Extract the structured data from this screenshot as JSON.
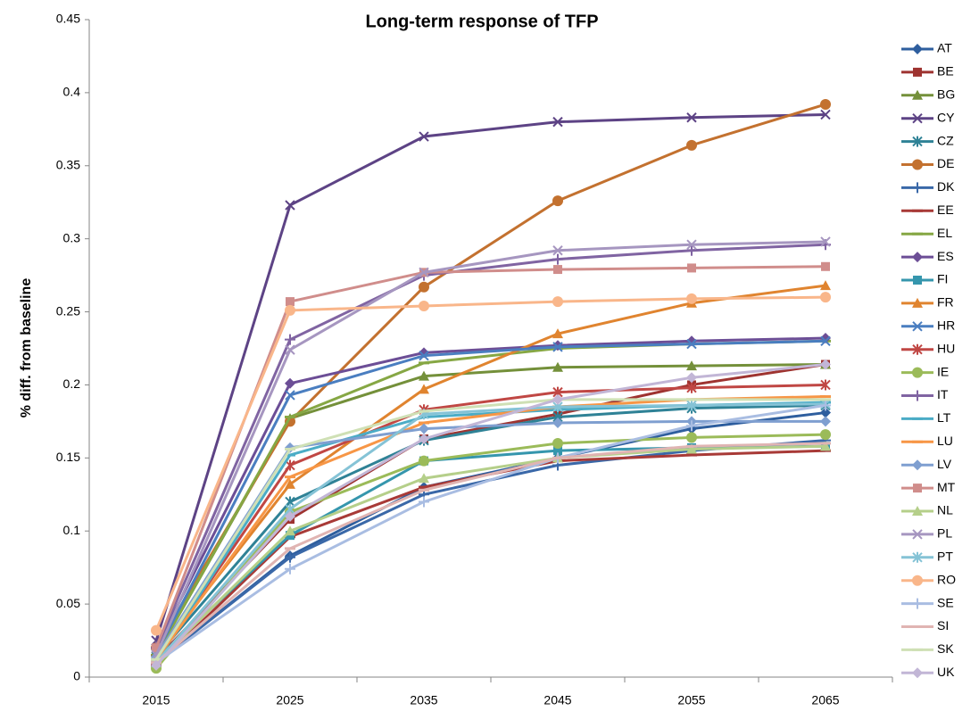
{
  "chart_data": {
    "type": "line",
    "title": "Long-term response of TFP",
    "y_label": "% diff. from baseline",
    "categories": [
      "2015",
      "2025",
      "2035",
      "2045",
      "2055",
      "2065"
    ],
    "ylim": [
      0,
      0.45
    ],
    "yticks": [
      0,
      0.05,
      0.1,
      0.15,
      0.2,
      0.25,
      0.3,
      0.35,
      0.4,
      0.45
    ],
    "grid": false,
    "legend": "right",
    "series": [
      {
        "name": "AT",
        "color": "#2e5e9e",
        "marker": "diamond",
        "values": [
          0.01,
          0.083,
          0.13,
          0.15,
          0.17,
          0.181
        ]
      },
      {
        "name": "BE",
        "color": "#9e3330",
        "marker": "square",
        "values": [
          0.012,
          0.108,
          0.163,
          0.18,
          0.2,
          0.214
        ]
      },
      {
        "name": "BG",
        "color": "#74903a",
        "marker": "triangle",
        "values": [
          0.015,
          0.177,
          0.206,
          0.212,
          0.213,
          0.214
        ]
      },
      {
        "name": "CY",
        "color": "#5d4385",
        "marker": "x",
        "values": [
          0.025,
          0.323,
          0.37,
          0.38,
          0.383,
          0.385
        ]
      },
      {
        "name": "CZ",
        "color": "#2f8296",
        "marker": "star",
        "values": [
          0.014,
          0.12,
          0.162,
          0.178,
          0.184,
          0.186
        ]
      },
      {
        "name": "DE",
        "color": "#c3712f",
        "marker": "circle",
        "values": [
          0.02,
          0.175,
          0.267,
          0.326,
          0.364,
          0.392
        ]
      },
      {
        "name": "DK",
        "color": "#3a68a8",
        "marker": "plus",
        "values": [
          0.01,
          0.082,
          0.125,
          0.145,
          0.155,
          0.162
        ]
      },
      {
        "name": "EE",
        "color": "#a83a37",
        "marker": "dash",
        "values": [
          0.008,
          0.096,
          0.13,
          0.148,
          0.152,
          0.155
        ]
      },
      {
        "name": "EL",
        "color": "#86a744",
        "marker": "dash",
        "values": [
          0.015,
          0.178,
          0.215,
          0.225,
          0.228,
          0.23
        ]
      },
      {
        "name": "ES",
        "color": "#6c4e96",
        "marker": "diamond",
        "values": [
          0.02,
          0.201,
          0.222,
          0.227,
          0.23,
          0.232
        ]
      },
      {
        "name": "FI",
        "color": "#3596ad",
        "marker": "square",
        "values": [
          0.012,
          0.097,
          0.148,
          0.155,
          0.157,
          0.158
        ]
      },
      {
        "name": "FR",
        "color": "#e0842f",
        "marker": "triangle",
        "values": [
          0.015,
          0.132,
          0.197,
          0.235,
          0.256,
          0.268
        ]
      },
      {
        "name": "HR",
        "color": "#4a7ec0",
        "marker": "x",
        "values": [
          0.016,
          0.193,
          0.22,
          0.226,
          0.228,
          0.23
        ]
      },
      {
        "name": "HU",
        "color": "#c04744",
        "marker": "star",
        "values": [
          0.012,
          0.145,
          0.183,
          0.195,
          0.198,
          0.2
        ]
      },
      {
        "name": "IE",
        "color": "#9bbb59",
        "marker": "circle",
        "values": [
          0.006,
          0.113,
          0.148,
          0.16,
          0.164,
          0.166
        ]
      },
      {
        "name": "IT",
        "color": "#8064a2",
        "marker": "plus",
        "values": [
          0.02,
          0.231,
          0.275,
          0.286,
          0.292,
          0.296
        ]
      },
      {
        "name": "LT",
        "color": "#4bacc6",
        "marker": "dash",
        "values": [
          0.01,
          0.152,
          0.178,
          0.183,
          0.186,
          0.188
        ]
      },
      {
        "name": "LU",
        "color": "#f79646",
        "marker": "dash",
        "values": [
          0.012,
          0.137,
          0.174,
          0.185,
          0.19,
          0.192
        ]
      },
      {
        "name": "LV",
        "color": "#7f9fd0",
        "marker": "diamond",
        "values": [
          0.014,
          0.157,
          0.17,
          0.174,
          0.175,
          0.175
        ]
      },
      {
        "name": "MT",
        "color": "#d08d8b",
        "marker": "square",
        "values": [
          0.02,
          0.257,
          0.277,
          0.279,
          0.28,
          0.281
        ]
      },
      {
        "name": "NL",
        "color": "#b5cf8a",
        "marker": "triangle",
        "values": [
          0.01,
          0.1,
          0.136,
          0.15,
          0.156,
          0.158
        ]
      },
      {
        "name": "PL",
        "color": "#a696c0",
        "marker": "x",
        "values": [
          0.015,
          0.224,
          0.277,
          0.292,
          0.296,
          0.298
        ]
      },
      {
        "name": "PT",
        "color": "#85c3d6",
        "marker": "star",
        "values": [
          0.01,
          0.115,
          0.18,
          0.185,
          0.186,
          0.187
        ]
      },
      {
        "name": "RO",
        "color": "#f9b68a",
        "marker": "circle",
        "values": [
          0.032,
          0.251,
          0.254,
          0.257,
          0.259,
          0.26
        ]
      },
      {
        "name": "SE",
        "color": "#a9bde2",
        "marker": "plus",
        "values": [
          0.01,
          0.074,
          0.12,
          0.15,
          0.172,
          0.186
        ]
      },
      {
        "name": "SI",
        "color": "#e0b4b2",
        "marker": "dash",
        "values": [
          0.01,
          0.088,
          0.128,
          0.15,
          0.158,
          0.16
        ]
      },
      {
        "name": "SK",
        "color": "#cfe0b5",
        "marker": "dash",
        "values": [
          0.012,
          0.156,
          0.182,
          0.19,
          0.19,
          0.19
        ]
      },
      {
        "name": "UK",
        "color": "#c2b6d6",
        "marker": "diamond",
        "values": [
          0.008,
          0.11,
          0.163,
          0.19,
          0.205,
          0.214
        ]
      }
    ]
  }
}
